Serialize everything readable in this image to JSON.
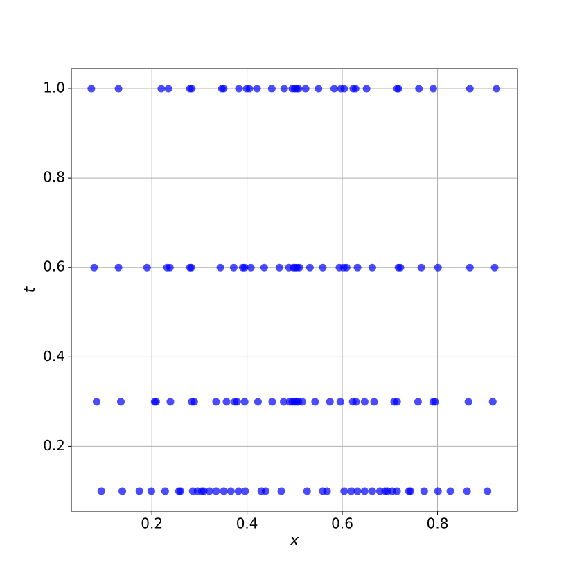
{
  "chart_data": {
    "type": "scatter",
    "xlabel": "x",
    "ylabel": "t",
    "color": "#0000ff",
    "grid": true,
    "xlim": [
      0.031,
      0.968
    ],
    "ylim": [
      0.055,
      1.045
    ],
    "xticks": [
      0.2,
      0.4,
      0.6,
      0.8
    ],
    "yticks": [
      0.2,
      0.4,
      0.6,
      0.8,
      {
        "value": 1,
        "label": "1.0"
      }
    ],
    "x": [
      0.073,
      0.13,
      0.22,
      0.235,
      0.28,
      0.284,
      0.347,
      0.351,
      0.383,
      0.399,
      0.405,
      0.421,
      0.452,
      0.478,
      0.495,
      0.5,
      0.504,
      0.508,
      0.523,
      0.55,
      0.583,
      0.597,
      0.604,
      0.623,
      0.628,
      0.651,
      0.715,
      0.718,
      0.761,
      0.791,
      0.868,
      0.924,
      0.079,
      0.13,
      0.19,
      0.232,
      0.238,
      0.28,
      0.283,
      0.344,
      0.372,
      0.391,
      0.395,
      0.408,
      0.436,
      0.468,
      0.488,
      0.497,
      0.501,
      0.505,
      0.51,
      0.532,
      0.559,
      0.594,
      0.603,
      0.609,
      0.632,
      0.663,
      0.718,
      0.722,
      0.766,
      0.801,
      0.868,
      0.92,
      0.084,
      0.135,
      0.206,
      0.209,
      0.239,
      0.284,
      0.289,
      0.335,
      0.357,
      0.374,
      0.379,
      0.395,
      0.423,
      0.453,
      0.477,
      0.49,
      0.495,
      0.5,
      0.504,
      0.508,
      0.516,
      0.543,
      0.574,
      0.596,
      0.622,
      0.629,
      0.647,
      0.667,
      0.709,
      0.715,
      0.759,
      0.791,
      0.795,
      0.865,
      0.916,
      0.094,
      0.138,
      0.174,
      0.199,
      0.228,
      0.257,
      0.26,
      0.286,
      0.296,
      0.305,
      0.309,
      0.321,
      0.335,
      0.351,
      0.366,
      0.382,
      0.396,
      0.43,
      0.439,
      0.472,
      0.526,
      0.559,
      0.568,
      0.604,
      0.619,
      0.632,
      0.647,
      0.663,
      0.679,
      0.69,
      0.695,
      0.705,
      0.715,
      0.74,
      0.743,
      0.772,
      0.801,
      0.827,
      0.862,
      0.905
    ],
    "values": [
      1,
      1,
      1,
      1,
      1,
      1,
      1,
      1,
      1,
      1,
      1,
      1,
      1,
      1,
      1,
      1,
      1,
      1,
      1,
      1,
      1,
      1,
      1,
      1,
      1,
      1,
      1,
      1,
      1,
      1,
      1,
      1,
      0.6,
      0.6,
      0.6,
      0.6,
      0.6,
      0.6,
      0.6,
      0.6,
      0.6,
      0.6,
      0.6,
      0.6,
      0.6,
      0.6,
      0.6,
      0.6,
      0.6,
      0.6,
      0.6,
      0.6,
      0.6,
      0.6,
      0.6,
      0.6,
      0.6,
      0.6,
      0.6,
      0.6,
      0.6,
      0.6,
      0.6,
      0.6,
      0.3,
      0.3,
      0.3,
      0.3,
      0.3,
      0.3,
      0.3,
      0.3,
      0.3,
      0.3,
      0.3,
      0.3,
      0.3,
      0.3,
      0.3,
      0.3,
      0.3,
      0.3,
      0.3,
      0.3,
      0.3,
      0.3,
      0.3,
      0.3,
      0.3,
      0.3,
      0.3,
      0.3,
      0.3,
      0.3,
      0.3,
      0.3,
      0.3,
      0.3,
      0.3,
      0.1,
      0.1,
      0.1,
      0.1,
      0.1,
      0.1,
      0.1,
      0.1,
      0.1,
      0.1,
      0.1,
      0.1,
      0.1,
      0.1,
      0.1,
      0.1,
      0.1,
      0.1,
      0.1,
      0.1,
      0.1,
      0.1,
      0.1,
      0.1,
      0.1,
      0.1,
      0.1,
      0.1,
      0.1,
      0.1,
      0.1,
      0.1,
      0.1,
      0.1,
      0.1,
      0.1,
      0.1,
      0.1,
      0.1,
      0.1
    ]
  }
}
